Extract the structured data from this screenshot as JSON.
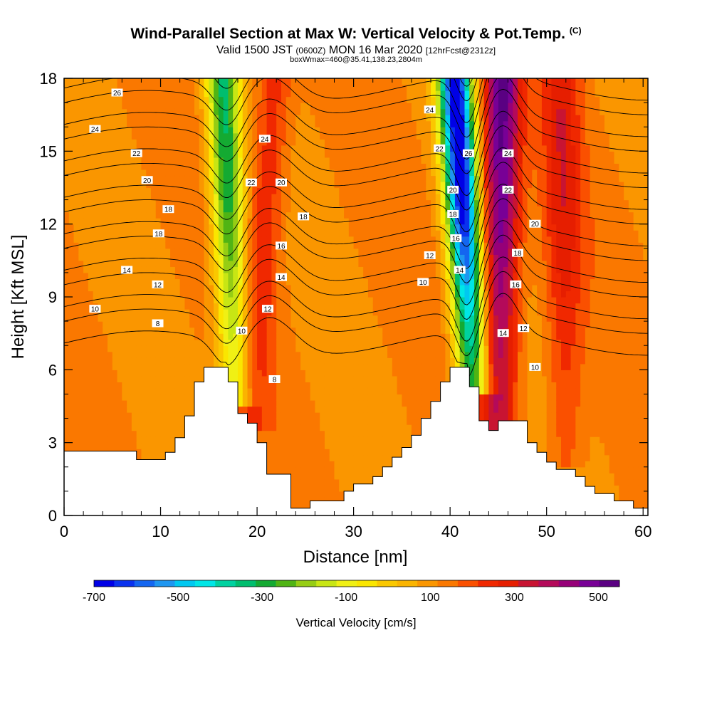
{
  "header": {
    "title": "Wind-Parallel Section at Max W: Vertical Velocity & Pot.Temp.",
    "title_mark": "(C)",
    "valid_prefix": "Valid 1500 JST",
    "valid_utc": "(0600Z)",
    "valid_date": "MON 16 Mar 2020",
    "forecast": "[12hrFcst@2312z]",
    "box_info": "boxWmax=460@35.41,138.23,2804m"
  },
  "chart_data": {
    "type": "heatmap",
    "xlabel": "Distance [nm]",
    "ylabel": "Height [Kft MSL]",
    "xlim": [
      0,
      60.5
    ],
    "ylim": [
      0,
      18
    ],
    "x_ticks": [
      0,
      10,
      20,
      30,
      40,
      50,
      60
    ],
    "y_ticks": [
      0,
      3,
      6,
      9,
      12,
      15,
      18
    ],
    "colorbar": {
      "label": "Vertical Velocity [cm/s]",
      "ticks": [
        -700,
        -500,
        -300,
        -100,
        100,
        300,
        500
      ],
      "range": [
        -700,
        550
      ],
      "colors": [
        "#0000e6",
        "#0a32ee",
        "#1466f0",
        "#1e96f0",
        "#00c8f0",
        "#00e6e6",
        "#00d2a0",
        "#00be6e",
        "#14aa32",
        "#50b414",
        "#96cd14",
        "#c8e614",
        "#f0f014",
        "#fae600",
        "#fac800",
        "#fab400",
        "#fa9600",
        "#fa7800",
        "#fa5000",
        "#f02800",
        "#e61e00",
        "#c81432",
        "#b40a5a",
        "#960078",
        "#780096",
        "#5a0082"
      ]
    },
    "w_field": {
      "units": "cm/s",
      "background": 120,
      "features": [
        {
          "kind": "updraft",
          "x_at_ground": 19.5,
          "height_ground": 4.0,
          "x_at_top": 21.8,
          "peak": 260
        },
        {
          "kind": "downdraft",
          "x_at_ground": 17.8,
          "height_ground": 5.0,
          "x_at_top": 16.4,
          "peak": -320
        },
        {
          "kind": "downdraft",
          "x_at_ground": 42.4,
          "height_ground": 5.5,
          "x_at_top": 40.5,
          "peak": -700
        },
        {
          "kind": "updraft",
          "x_at_ground": 45.0,
          "height_ground": 3.5,
          "x_at_top": 45.4,
          "peak": 520
        },
        {
          "kind": "updraft",
          "x_at_ground": 52.0,
          "height_ground": 2.5,
          "x_at_top": 51.5,
          "peak": 280
        }
      ]
    },
    "theta_contours": {
      "units": "C",
      "levels": [
        8,
        10,
        12,
        14,
        16,
        18,
        20,
        22,
        24,
        26
      ],
      "labels": [
        {
          "value": "26",
          "x": 5.5,
          "y": 17.4
        },
        {
          "value": "24",
          "x": 3.2,
          "y": 15.9
        },
        {
          "value": "22",
          "x": 7.5,
          "y": 14.9
        },
        {
          "value": "20",
          "x": 8.6,
          "y": 13.8
        },
        {
          "value": "18",
          "x": 10.8,
          "y": 12.6
        },
        {
          "value": "18",
          "x": 9.8,
          "y": 11.6
        },
        {
          "value": "14",
          "x": 6.5,
          "y": 10.1
        },
        {
          "value": "12",
          "x": 9.7,
          "y": 9.5
        },
        {
          "value": "10",
          "x": 3.2,
          "y": 8.5
        },
        {
          "value": "8",
          "x": 9.7,
          "y": 7.9
        },
        {
          "value": "24",
          "x": 20.8,
          "y": 15.5
        },
        {
          "value": "22",
          "x": 19.4,
          "y": 13.7
        },
        {
          "value": "20",
          "x": 22.5,
          "y": 13.7
        },
        {
          "value": "18",
          "x": 24.8,
          "y": 12.3
        },
        {
          "value": "16",
          "x": 22.5,
          "y": 11.1
        },
        {
          "value": "14",
          "x": 22.5,
          "y": 9.8
        },
        {
          "value": "12",
          "x": 21.1,
          "y": 8.5
        },
        {
          "value": "10",
          "x": 18.4,
          "y": 7.6
        },
        {
          "value": "8",
          "x": 21.8,
          "y": 5.6
        },
        {
          "value": "24",
          "x": 37.9,
          "y": 16.7
        },
        {
          "value": "22",
          "x": 38.9,
          "y": 15.1
        },
        {
          "value": "26",
          "x": 41.9,
          "y": 14.9
        },
        {
          "value": "24",
          "x": 46.0,
          "y": 14.9
        },
        {
          "value": "20",
          "x": 40.3,
          "y": 13.4
        },
        {
          "value": "22",
          "x": 46.0,
          "y": 13.4
        },
        {
          "value": "18",
          "x": 40.3,
          "y": 12.4
        },
        {
          "value": "16",
          "x": 40.6,
          "y": 11.4
        },
        {
          "value": "20",
          "x": 48.8,
          "y": 12.0
        },
        {
          "value": "12",
          "x": 37.9,
          "y": 10.7
        },
        {
          "value": "14",
          "x": 41.0,
          "y": 10.1
        },
        {
          "value": "18",
          "x": 47.0,
          "y": 10.8
        },
        {
          "value": "10",
          "x": 37.2,
          "y": 9.6
        },
        {
          "value": "16",
          "x": 46.8,
          "y": 9.5
        },
        {
          "value": "12",
          "x": 47.6,
          "y": 7.7
        },
        {
          "value": "14",
          "x": 45.5,
          "y": 7.5
        },
        {
          "value": "10",
          "x": 48.8,
          "y": 6.1
        }
      ]
    },
    "terrain": {
      "units": "Kft",
      "profile": [
        [
          0.0,
          2.65
        ],
        [
          7.5,
          2.65
        ],
        [
          7.5,
          2.3
        ],
        [
          10.5,
          2.3
        ],
        [
          10.5,
          2.6
        ],
        [
          11.5,
          2.6
        ],
        [
          11.5,
          3.2
        ],
        [
          12.5,
          3.2
        ],
        [
          12.5,
          4.1
        ],
        [
          13.5,
          4.1
        ],
        [
          13.5,
          5.5
        ],
        [
          14.5,
          5.5
        ],
        [
          14.5,
          6.1
        ],
        [
          17.0,
          6.1
        ],
        [
          17.0,
          5.5
        ],
        [
          18.0,
          5.5
        ],
        [
          18.0,
          4.2
        ],
        [
          19.0,
          4.2
        ],
        [
          19.0,
          3.8
        ],
        [
          20.0,
          3.8
        ],
        [
          20.0,
          3.0
        ],
        [
          21.0,
          3.0
        ],
        [
          21.0,
          1.7
        ],
        [
          23.5,
          1.7
        ],
        [
          23.5,
          0.3
        ],
        [
          25.5,
          0.3
        ],
        [
          25.5,
          0.6
        ],
        [
          29.0,
          0.6
        ],
        [
          29.0,
          1.0
        ],
        [
          30.0,
          1.0
        ],
        [
          30.0,
          1.3
        ],
        [
          32.0,
          1.3
        ],
        [
          32.0,
          1.6
        ],
        [
          33.0,
          1.6
        ],
        [
          33.0,
          2.0
        ],
        [
          34.0,
          2.0
        ],
        [
          34.0,
          2.4
        ],
        [
          35.0,
          2.4
        ],
        [
          35.0,
          2.8
        ],
        [
          36.0,
          2.8
        ],
        [
          36.0,
          3.3
        ],
        [
          37.0,
          3.3
        ],
        [
          37.0,
          4.0
        ],
        [
          38.0,
          4.0
        ],
        [
          38.0,
          4.7
        ],
        [
          39.0,
          4.7
        ],
        [
          39.0,
          5.5
        ],
        [
          40.0,
          5.5
        ],
        [
          40.0,
          6.1
        ],
        [
          42.0,
          6.1
        ],
        [
          42.0,
          5.3
        ],
        [
          43.0,
          5.3
        ],
        [
          43.0,
          3.9
        ],
        [
          44.0,
          3.9
        ],
        [
          44.0,
          3.5
        ],
        [
          45.0,
          3.5
        ],
        [
          45.0,
          3.9
        ],
        [
          48.0,
          3.9
        ],
        [
          48.0,
          3.0
        ],
        [
          49.0,
          3.0
        ],
        [
          49.0,
          2.6
        ],
        [
          50.0,
          2.6
        ],
        [
          50.0,
          2.2
        ],
        [
          51.0,
          2.2
        ],
        [
          51.0,
          1.9
        ],
        [
          53.0,
          1.9
        ],
        [
          53.0,
          1.6
        ],
        [
          54.0,
          1.6
        ],
        [
          54.0,
          1.2
        ],
        [
          55.0,
          1.2
        ],
        [
          55.0,
          0.9
        ],
        [
          57.0,
          0.9
        ],
        [
          57.0,
          0.6
        ],
        [
          59.0,
          0.6
        ],
        [
          59.0,
          0.3
        ],
        [
          60.5,
          0.3
        ]
      ]
    }
  }
}
